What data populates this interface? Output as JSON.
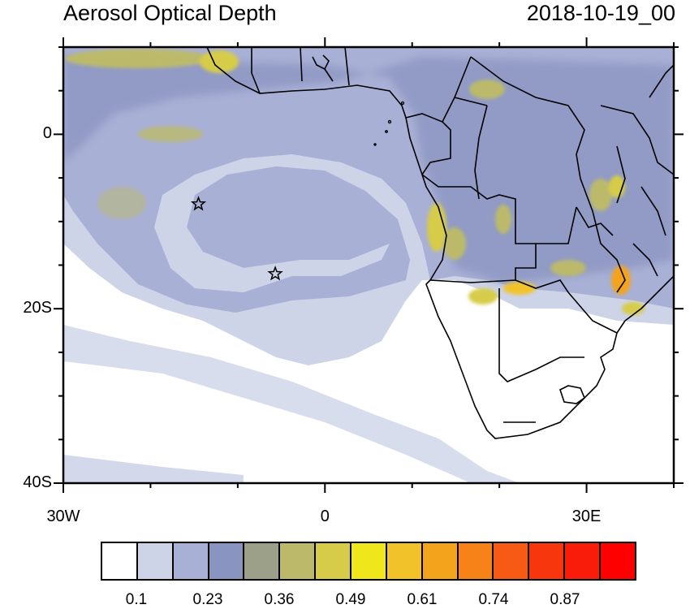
{
  "title_left": "Aerosol Optical Depth",
  "title_right": "2018-10-19_00",
  "map": {
    "lat_range": [
      -40,
      10
    ],
    "lon_range": [
      -30,
      40
    ],
    "lat_ticks": [
      {
        "value": 0,
        "label": "0"
      },
      {
        "value": -20,
        "label": "20S"
      },
      {
        "value": -40,
        "label": "40S"
      }
    ],
    "lon_ticks": [
      {
        "value": -30,
        "label": "30W"
      },
      {
        "value": 0,
        "label": "0"
      },
      {
        "value": 30,
        "label": "30E"
      }
    ],
    "markers": [
      {
        "name": "star",
        "lon": -14.5,
        "lat": -8
      },
      {
        "name": "star",
        "lon": -5.7,
        "lat": -16
      }
    ]
  },
  "colorbar": {
    "colors": [
      "#ffffff",
      "#ced4e8",
      "#a9b0d6",
      "#8a94c0",
      "#9ca088",
      "#bcba6a",
      "#d6cc4a",
      "#f0e61c",
      "#f2c22a",
      "#f4a31c",
      "#f68218",
      "#f65a14",
      "#f8360e",
      "#fa1c0a",
      "#ff0000"
    ],
    "labels": [
      "0.1",
      "0.23",
      "0.36",
      "0.49",
      "0.61",
      "0.74",
      "0.87"
    ]
  }
}
